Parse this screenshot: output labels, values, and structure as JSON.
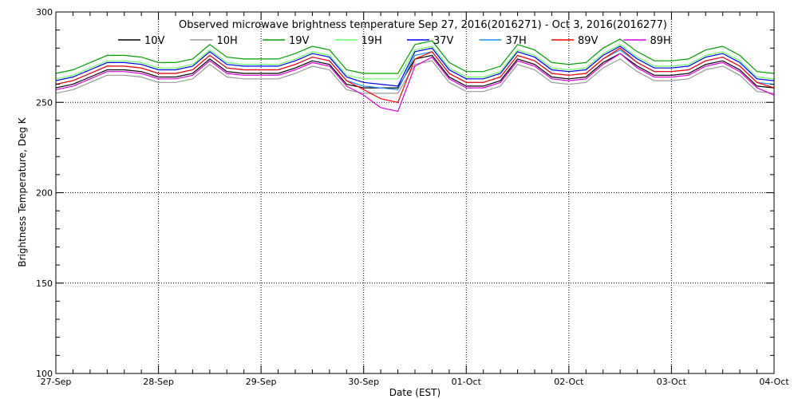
{
  "chart_data": {
    "type": "line",
    "title": "Observed microwave brightness temperature Sep 27, 2016(2016271) - Oct  3, 2016(2016277)",
    "xlabel": "Date (EST)",
    "ylabel": "Brightness Temperature, Deg K",
    "ylim": [
      100,
      300
    ],
    "yticks": [
      "100",
      "150",
      "200",
      "250",
      "300"
    ],
    "xlim_hours": [
      0,
      168
    ],
    "xticks": [
      "27-Sep",
      "28-Sep",
      "29-Sep",
      "30-Sep",
      "01-Oct",
      "02-Oct",
      "03-Oct",
      "04-Oct"
    ],
    "grid": true,
    "legend_placement": "top",
    "x_hours_step": 4,
    "series": [
      {
        "name": "10V",
        "color": "#000000",
        "values": [
          258,
          260,
          264,
          268,
          268,
          267,
          264,
          264,
          266,
          274,
          267,
          266,
          266,
          266,
          269,
          273,
          271,
          260,
          258,
          258,
          258,
          274,
          276,
          264,
          259,
          259,
          262,
          274,
          271,
          264,
          263,
          264,
          272,
          277,
          270,
          265,
          265,
          266,
          271,
          273,
          268,
          259,
          258
        ]
      },
      {
        "name": "10H",
        "color": "#999999",
        "values": [
          255,
          257,
          261,
          265,
          265,
          264,
          261,
          261,
          263,
          271,
          264,
          263,
          263,
          263,
          266,
          270,
          268,
          257,
          255,
          255,
          255,
          271,
          273,
          261,
          256,
          256,
          259,
          271,
          268,
          261,
          260,
          261,
          269,
          274,
          267,
          262,
          262,
          263,
          268,
          270,
          265,
          256,
          255
        ]
      },
      {
        "name": "19V",
        "color": "#00a000",
        "values": [
          266,
          268,
          272,
          276,
          276,
          275,
          272,
          272,
          274,
          282,
          275,
          274,
          274,
          274,
          277,
          281,
          279,
          268,
          266,
          266,
          266,
          282,
          284,
          272,
          267,
          267,
          270,
          282,
          279,
          272,
          271,
          272,
          280,
          285,
          278,
          273,
          273,
          274,
          279,
          281,
          276,
          267,
          266
        ]
      },
      {
        "name": "19H",
        "color": "#66ff66",
        "values": [
          263,
          265,
          269,
          273,
          273,
          272,
          269,
          269,
          271,
          279,
          272,
          271,
          271,
          271,
          274,
          278,
          276,
          265,
          263,
          263,
          263,
          279,
          281,
          269,
          264,
          264,
          267,
          279,
          276,
          269,
          268,
          269,
          277,
          282,
          275,
          270,
          270,
          271,
          276,
          278,
          273,
          264,
          263
        ]
      },
      {
        "name": "37V",
        "color": "#0000ff",
        "values": [
          262,
          264,
          268,
          272,
          272,
          271,
          268,
          268,
          270,
          278,
          271,
          270,
          270,
          270,
          273,
          277,
          275,
          264,
          261,
          260,
          259,
          278,
          280,
          268,
          263,
          263,
          266,
          278,
          275,
          268,
          267,
          268,
          276,
          281,
          274,
          269,
          269,
          270,
          275,
          277,
          272,
          263,
          262
        ]
      },
      {
        "name": "37H",
        "color": "#1e90ff",
        "values": [
          260,
          262,
          266,
          270,
          270,
          269,
          266,
          266,
          268,
          276,
          269,
          268,
          268,
          268,
          271,
          275,
          273,
          262,
          259,
          258,
          257,
          276,
          278,
          266,
          261,
          261,
          264,
          276,
          273,
          266,
          265,
          266,
          274,
          279,
          272,
          267,
          267,
          268,
          273,
          275,
          270,
          261,
          260
        ]
      },
      {
        "name": "89V",
        "color": "#ff0000",
        "values": [
          260,
          262,
          266,
          270,
          270,
          269,
          266,
          266,
          268,
          276,
          269,
          268,
          268,
          268,
          271,
          275,
          273,
          262,
          257,
          252,
          250,
          274,
          278,
          266,
          261,
          261,
          264,
          276,
          273,
          266,
          265,
          266,
          274,
          280,
          272,
          267,
          267,
          268,
          273,
          275,
          270,
          261,
          258
        ]
      },
      {
        "name": "89H",
        "color": "#dd00dd",
        "values": [
          257,
          259,
          263,
          267,
          267,
          266,
          263,
          263,
          265,
          273,
          266,
          265,
          265,
          265,
          268,
          272,
          270,
          259,
          254,
          247,
          245,
          270,
          275,
          263,
          258,
          258,
          261,
          273,
          270,
          263,
          262,
          263,
          271,
          277,
          269,
          264,
          264,
          265,
          270,
          272,
          267,
          258,
          254
        ]
      }
    ]
  }
}
